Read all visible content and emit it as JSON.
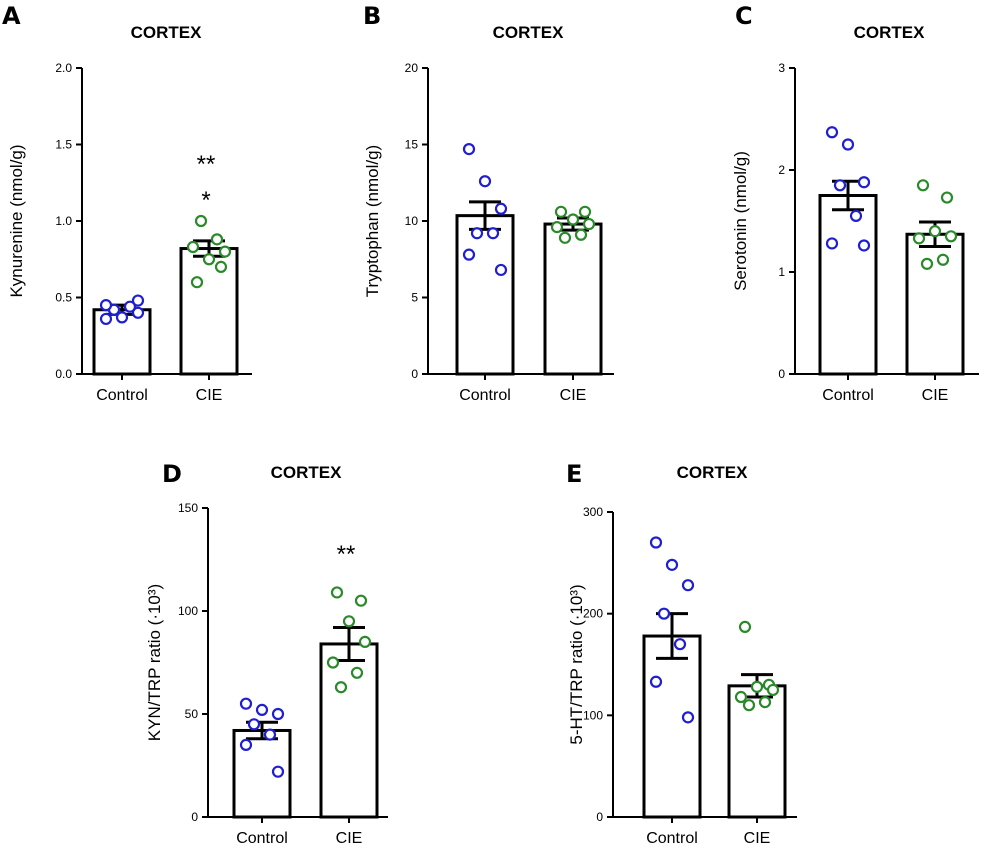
{
  "colors": {
    "control": "#1f1fd1",
    "cie": "#2a8a2a",
    "axis": "#000000"
  },
  "chart_data": [
    {
      "type": "bar",
      "letter": "A",
      "title": "CORTEX",
      "ylabel": "Kynurenine (nmol/g)",
      "ylim": [
        0,
        2.0
      ],
      "yticks": [
        "0.0",
        "0.5",
        "1.0",
        "1.5",
        "2.0"
      ],
      "categories": [
        "Control",
        "CIE"
      ],
      "values": [
        0.42,
        0.82
      ],
      "sem": [
        0.03,
        0.05
      ],
      "points": [
        [
          0.36,
          0.37,
          0.4,
          0.42,
          0.44,
          0.45,
          0.48
        ],
        [
          0.6,
          0.7,
          0.75,
          0.8,
          0.83,
          0.88,
          1.0
        ]
      ],
      "significance": [
        "",
        "**\n*"
      ]
    },
    {
      "type": "bar",
      "letter": "B",
      "title": "CORTEX",
      "ylabel": "Tryptophan (nmol/g)",
      "ylim": [
        0,
        20
      ],
      "yticks": [
        "0",
        "5",
        "10",
        "15",
        "20"
      ],
      "categories": [
        "Control",
        "CIE"
      ],
      "values": [
        10.35,
        9.8
      ],
      "sem": [
        0.9,
        0.4
      ],
      "points": [
        [
          14.7,
          12.6,
          10.8,
          9.2,
          9.2,
          7.8,
          6.8
        ],
        [
          10.6,
          10.6,
          10.1,
          9.8,
          9.6,
          9.1,
          8.9
        ]
      ],
      "significance": [
        "",
        ""
      ]
    },
    {
      "type": "bar",
      "letter": "C",
      "title": "CORTEX",
      "ylabel": "Serotonin (nmol/g)",
      "ylim": [
        0,
        3
      ],
      "yticks": [
        "0",
        "1",
        "2",
        "3"
      ],
      "categories": [
        "Control",
        "CIE"
      ],
      "values": [
        1.75,
        1.37
      ],
      "sem": [
        0.14,
        0.12
      ],
      "points": [
        [
          2.37,
          2.25,
          1.88,
          1.85,
          1.55,
          1.28,
          1.26
        ],
        [
          1.85,
          1.73,
          1.4,
          1.35,
          1.33,
          1.12,
          1.08
        ]
      ],
      "significance": [
        "",
        ""
      ]
    },
    {
      "type": "bar",
      "letter": "D",
      "title": "CORTEX",
      "ylabel": "KYN/TRP ratio (·10³)",
      "ylim": [
        0,
        150
      ],
      "yticks": [
        "0",
        "50",
        "100",
        "150"
      ],
      "categories": [
        "Control",
        "CIE"
      ],
      "values": [
        42,
        84
      ],
      "sem": [
        4,
        8
      ],
      "points": [
        [
          55,
          52,
          50,
          45,
          40,
          35,
          22
        ],
        [
          109,
          105,
          95,
          85,
          75,
          70,
          63
        ]
      ],
      "significance": [
        "",
        "**"
      ]
    },
    {
      "type": "bar",
      "letter": "E",
      "title": "CORTEX",
      "ylabel": "5-HT/TRP ratio (·10³)",
      "ylim": [
        0,
        300
      ],
      "yticks": [
        "0",
        "100",
        "200",
        "300"
      ],
      "categories": [
        "Control",
        "CIE"
      ],
      "values": [
        178,
        129
      ],
      "sem": [
        22,
        11
      ],
      "points": [
        [
          270,
          248,
          228,
          200,
          170,
          133,
          98
        ],
        [
          187,
          130,
          128,
          125,
          118,
          113,
          110
        ]
      ],
      "significance": [
        "",
        ""
      ]
    }
  ]
}
